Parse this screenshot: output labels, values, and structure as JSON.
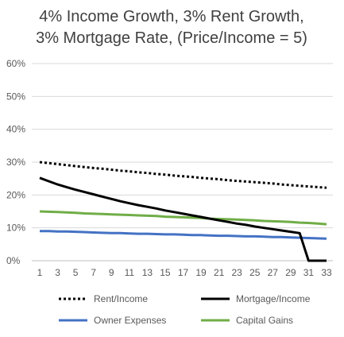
{
  "chart_data": {
    "type": "line",
    "title_lines": [
      "4% Income Growth, 3% Rent Growth,",
      "3% Mortgage Rate, (Price/Income = 5)"
    ],
    "xlabel": "",
    "ylabel": "",
    "x": [
      1,
      2,
      3,
      4,
      5,
      6,
      7,
      8,
      9,
      10,
      11,
      12,
      13,
      14,
      15,
      16,
      17,
      18,
      19,
      20,
      21,
      22,
      23,
      24,
      25,
      26,
      27,
      28,
      29,
      30,
      31,
      32,
      33
    ],
    "x_tick_labels": [
      "1",
      "3",
      "5",
      "7",
      "9",
      "11",
      "13",
      "15",
      "17",
      "19",
      "21",
      "23",
      "25",
      "27",
      "29",
      "31",
      "33"
    ],
    "ylim": [
      0,
      60
    ],
    "y_ticks": [
      0,
      10,
      20,
      30,
      40,
      50,
      60
    ],
    "y_tick_labels": [
      "0%",
      "10%",
      "20%",
      "30%",
      "40%",
      "50%",
      "60%"
    ],
    "grid": true,
    "legend_position": "bottom",
    "series": [
      {
        "name": "Rent/Income",
        "color": "#000000",
        "dash": "dotted",
        "values": [
          30.0,
          29.7,
          29.4,
          29.1,
          28.8,
          28.5,
          28.2,
          28.0,
          27.7,
          27.4,
          27.2,
          26.9,
          26.7,
          26.4,
          26.2,
          25.9,
          25.7,
          25.5,
          25.2,
          25.0,
          24.8,
          24.5,
          24.3,
          24.1,
          23.9,
          23.7,
          23.5,
          23.2,
          23.0,
          22.8,
          22.6,
          22.4,
          22.2
        ]
      },
      {
        "name": "Mortgage/Income",
        "color": "#000000",
        "dash": "solid",
        "values": [
          25.2,
          24.2,
          23.2,
          22.4,
          21.6,
          20.9,
          20.2,
          19.5,
          18.8,
          18.1,
          17.5,
          16.9,
          16.4,
          15.9,
          15.3,
          14.8,
          14.3,
          13.8,
          13.3,
          12.8,
          12.3,
          11.8,
          11.3,
          10.9,
          10.4,
          10.0,
          9.6,
          9.2,
          8.8,
          8.4,
          0.0,
          0.0,
          0.0
        ]
      },
      {
        "name": "Owner Expenses",
        "color": "#4472c4",
        "dash": "solid",
        "values": [
          9.0,
          9.0,
          8.9,
          8.9,
          8.8,
          8.7,
          8.6,
          8.5,
          8.4,
          8.4,
          8.3,
          8.2,
          8.2,
          8.1,
          8.0,
          8.0,
          7.9,
          7.8,
          7.8,
          7.7,
          7.6,
          7.6,
          7.5,
          7.4,
          7.4,
          7.3,
          7.2,
          7.2,
          7.1,
          7.0,
          6.9,
          6.8,
          6.7
        ]
      },
      {
        "name": "Capital Gains",
        "color": "#70ad47",
        "dash": "solid",
        "values": [
          15.0,
          14.9,
          14.8,
          14.7,
          14.6,
          14.4,
          14.3,
          14.2,
          14.1,
          14.0,
          13.9,
          13.8,
          13.7,
          13.6,
          13.4,
          13.3,
          13.2,
          13.1,
          13.0,
          12.8,
          12.7,
          12.6,
          12.5,
          12.4,
          12.3,
          12.1,
          12.0,
          11.9,
          11.8,
          11.6,
          11.5,
          11.3,
          11.1
        ]
      }
    ]
  }
}
